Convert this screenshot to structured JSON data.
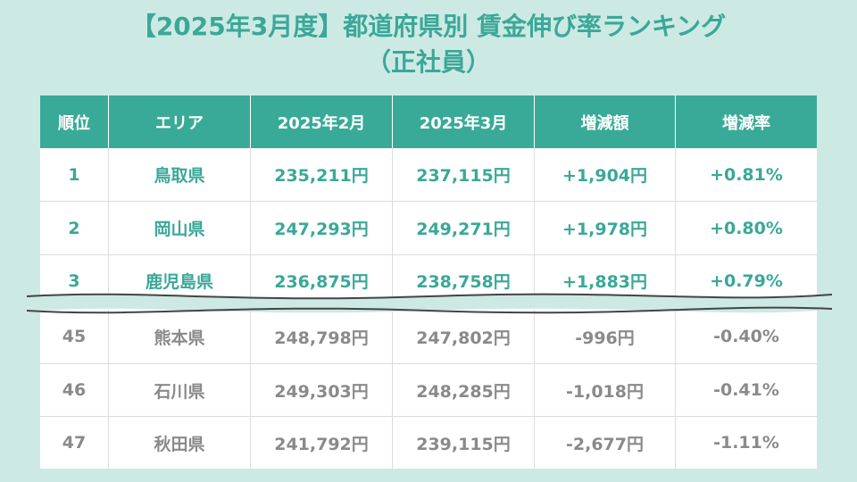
{
  "title": {
    "line1": "【2025年3月度】都道府県別 賃金伸び率ランキング",
    "line2": "（正社員）"
  },
  "table": {
    "headers": [
      "順位",
      "エリア",
      "2025年2月",
      "2025年3月",
      "増減額",
      "増減率"
    ],
    "top_rows": [
      [
        "1",
        "鳥取県",
        "235,211円",
        "237,115円",
        "+1,904円",
        "+0.81%"
      ],
      [
        "2",
        "岡山県",
        "247,293円",
        "249,271円",
        "+1,978円",
        "+0.80%"
      ],
      [
        "3",
        "鹿児島県",
        "236,875円",
        "238,758円",
        "+1,883円",
        "+0.79%"
      ]
    ],
    "bottom_rows": [
      [
        "45",
        "熊本県",
        "248,798円",
        "247,802円",
        "-996円",
        "-0.40%"
      ],
      [
        "46",
        "石川県",
        "249,303円",
        "248,285円",
        "-1,018円",
        "-0.41%"
      ],
      [
        "47",
        "秋田県",
        "241,792円",
        "239,115円",
        "-2,677円",
        "-1.11%"
      ]
    ]
  },
  "colors": {
    "background": "#cde9e4",
    "accent": "#3aaa98",
    "top_text": "#3aa898",
    "bottom_text": "#8a8a8a"
  }
}
